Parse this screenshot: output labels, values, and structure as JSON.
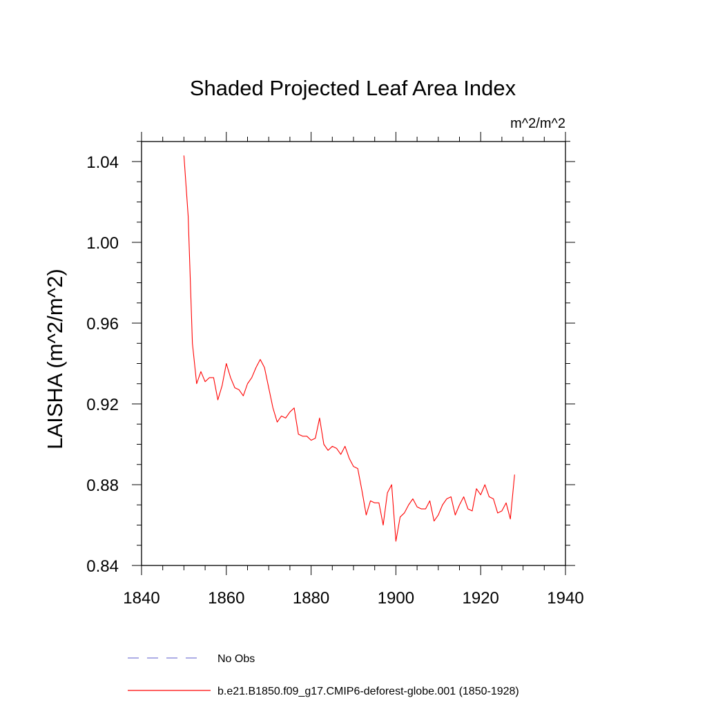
{
  "chart_data": {
    "type": "line",
    "title": "Shaded Projected Leaf Area Index",
    "units": "m^2/m^2",
    "xlabel": "",
    "ylabel": "LAISHA  (m^2/m^2)",
    "xlim": [
      1840,
      1940
    ],
    "ylim": [
      0.84,
      1.05
    ],
    "x_ticks": [
      1840,
      1860,
      1880,
      1900,
      1920,
      1940
    ],
    "y_ticks": [
      0.84,
      0.88,
      0.92,
      0.96,
      1.0,
      1.04
    ],
    "x_tick_labels": [
      "1840",
      "1860",
      "1880",
      "1900",
      "1920",
      "1940"
    ],
    "y_tick_labels": [
      "0.84",
      "0.88",
      "0.92",
      "0.96",
      "1.00",
      "1.04"
    ],
    "grid": false,
    "series": [
      {
        "name": "b.e21.B1850.f09_g17.CMIP6-deforest-globe.001 (1850-1928)",
        "color": "#ff0000",
        "style": "solid",
        "x": [
          1850,
          1851,
          1852,
          1853,
          1854,
          1855,
          1856,
          1857,
          1858,
          1859,
          1860,
          1861,
          1862,
          1863,
          1864,
          1865,
          1866,
          1867,
          1868,
          1869,
          1870,
          1871,
          1872,
          1873,
          1874,
          1875,
          1876,
          1877,
          1878,
          1879,
          1880,
          1881,
          1882,
          1883,
          1884,
          1885,
          1886,
          1887,
          1888,
          1889,
          1890,
          1891,
          1892,
          1893,
          1894,
          1895,
          1896,
          1897,
          1898,
          1899,
          1900,
          1901,
          1902,
          1903,
          1904,
          1905,
          1906,
          1907,
          1908,
          1909,
          1910,
          1911,
          1912,
          1913,
          1914,
          1915,
          1916,
          1917,
          1918,
          1919,
          1920,
          1921,
          1922,
          1923,
          1924,
          1925,
          1926,
          1927,
          1928
        ],
        "values": [
          1.043,
          1.013,
          0.95,
          0.93,
          0.936,
          0.931,
          0.933,
          0.933,
          0.922,
          0.929,
          0.94,
          0.933,
          0.928,
          0.927,
          0.924,
          0.93,
          0.933,
          0.938,
          0.942,
          0.938,
          0.928,
          0.918,
          0.911,
          0.914,
          0.913,
          0.916,
          0.918,
          0.905,
          0.904,
          0.904,
          0.902,
          0.903,
          0.913,
          0.9,
          0.897,
          0.899,
          0.898,
          0.895,
          0.899,
          0.893,
          0.889,
          0.888,
          0.877,
          0.865,
          0.872,
          0.871,
          0.871,
          0.86,
          0.876,
          0.88,
          0.852,
          0.864,
          0.866,
          0.87,
          0.873,
          0.869,
          0.868,
          0.868,
          0.872,
          0.862,
          0.865,
          0.87,
          0.873,
          0.874,
          0.865,
          0.87,
          0.874,
          0.868,
          0.867,
          0.878,
          0.875,
          0.88,
          0.874,
          0.873,
          0.866,
          0.867,
          0.871,
          0.863,
          0.885
        ]
      },
      {
        "name": "No Obs",
        "color": "#7b7bd6",
        "style": "dashed",
        "x": [],
        "values": []
      }
    ],
    "legend": {
      "placement": "bottom",
      "entries": [
        {
          "label": "No Obs",
          "color": "#7b7bd6",
          "style": "dashed"
        },
        {
          "label": "b.e21.B1850.f09_g17.CMIP6-deforest-globe.001 (1850-1928)",
          "color": "#ff0000",
          "style": "solid"
        }
      ]
    }
  }
}
